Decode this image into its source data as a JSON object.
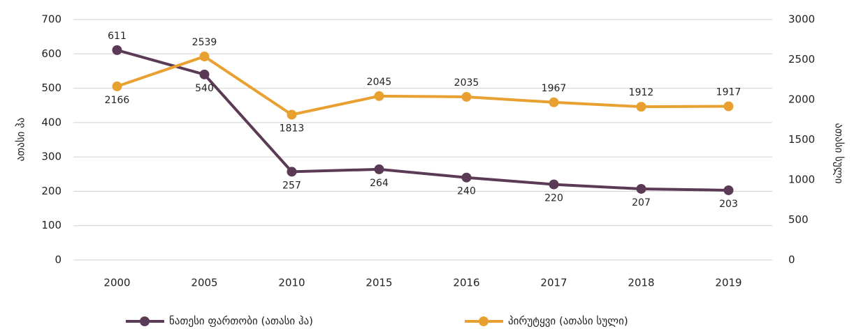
{
  "chart_data": {
    "type": "line",
    "categories": [
      "2000",
      "2005",
      "2010",
      "2015",
      "2016",
      "2017",
      "2018",
      "2019"
    ],
    "series": [
      {
        "name": "ნათესი ფართობი (ათასი ჰა)",
        "color": "#5b3a55",
        "values": [
          611,
          540,
          257,
          264,
          240,
          220,
          207,
          203
        ]
      },
      {
        "name": "პირუტყვი (ათასი სული)",
        "color": "#e8a030",
        "axis": "y2",
        "values": [
          2166,
          2539,
          1813,
          2045,
          2035,
          1967,
          1912,
          1917
        ]
      }
    ],
    "ylabel": "ათასი ჰა",
    "y2label": "ათასი სული",
    "ylim": [
      0,
      700
    ],
    "yticks": [
      0,
      100,
      200,
      300,
      400,
      500,
      600,
      700
    ],
    "y2lim": [
      0,
      3000
    ],
    "y2ticks": [
      0,
      500,
      1000,
      1500,
      2000,
      2500,
      3000
    ],
    "grid": true,
    "legend": "bottom"
  }
}
